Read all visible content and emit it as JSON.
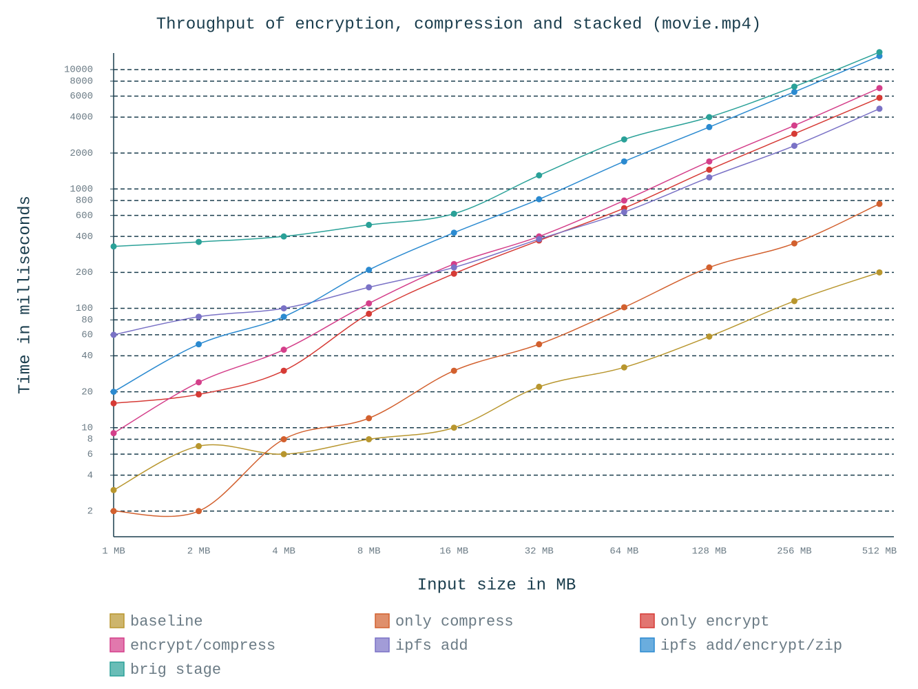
{
  "chart_data": {
    "type": "line",
    "title": "Throughput of encryption, compression and stacked (movie.mp4)",
    "x_label": "Input size in MB",
    "y_label": "Time in milliseconds",
    "y_scale": "log",
    "grid": true,
    "categories": [
      "1 MB",
      "2 MB",
      "4 MB",
      "8 MB",
      "16 MB",
      "32 MB",
      "64 MB",
      "128 MB",
      "256 MB",
      "512 MB"
    ],
    "ylim": [
      1.22,
      15000
    ],
    "yticks": [
      2,
      4,
      6,
      8,
      10,
      20,
      40,
      60,
      80,
      100,
      200,
      400,
      600,
      800,
      1000,
      2000,
      4000,
      6000,
      8000,
      10000
    ],
    "series": [
      {
        "name": "baseline",
        "color": "#b8962e",
        "values": [
          3,
          7,
          6,
          8,
          10,
          22,
          32,
          58,
          115,
          200
        ]
      },
      {
        "name": "only compress",
        "color": "#d2602e",
        "values": [
          2,
          2,
          8,
          12,
          30,
          50,
          102,
          220,
          350,
          750
        ]
      },
      {
        "name": "only encrypt",
        "color": "#d63a35",
        "values": [
          16,
          19,
          30,
          90,
          195,
          370,
          690,
          1450,
          2900,
          5800
        ]
      },
      {
        "name": "encrypt/compress",
        "color": "#d43f8a",
        "values": [
          9,
          24,
          45,
          110,
          235,
          400,
          800,
          1700,
          3400,
          7000
        ]
      },
      {
        "name": "ipfs add",
        "color": "#7a72c6",
        "values": [
          60,
          85,
          100,
          150,
          220,
          380,
          640,
          1250,
          2300,
          4700
        ]
      },
      {
        "name": "ipfs add/encrypt/zip",
        "color": "#2b8ad0",
        "values": [
          20,
          50,
          85,
          210,
          430,
          820,
          1700,
          3300,
          6500,
          13000
        ]
      },
      {
        "name": "brig stage",
        "color": "#2aa198",
        "values": [
          330,
          360,
          400,
          500,
          620,
          1300,
          2600,
          4000,
          7200,
          14000
        ]
      }
    ]
  }
}
